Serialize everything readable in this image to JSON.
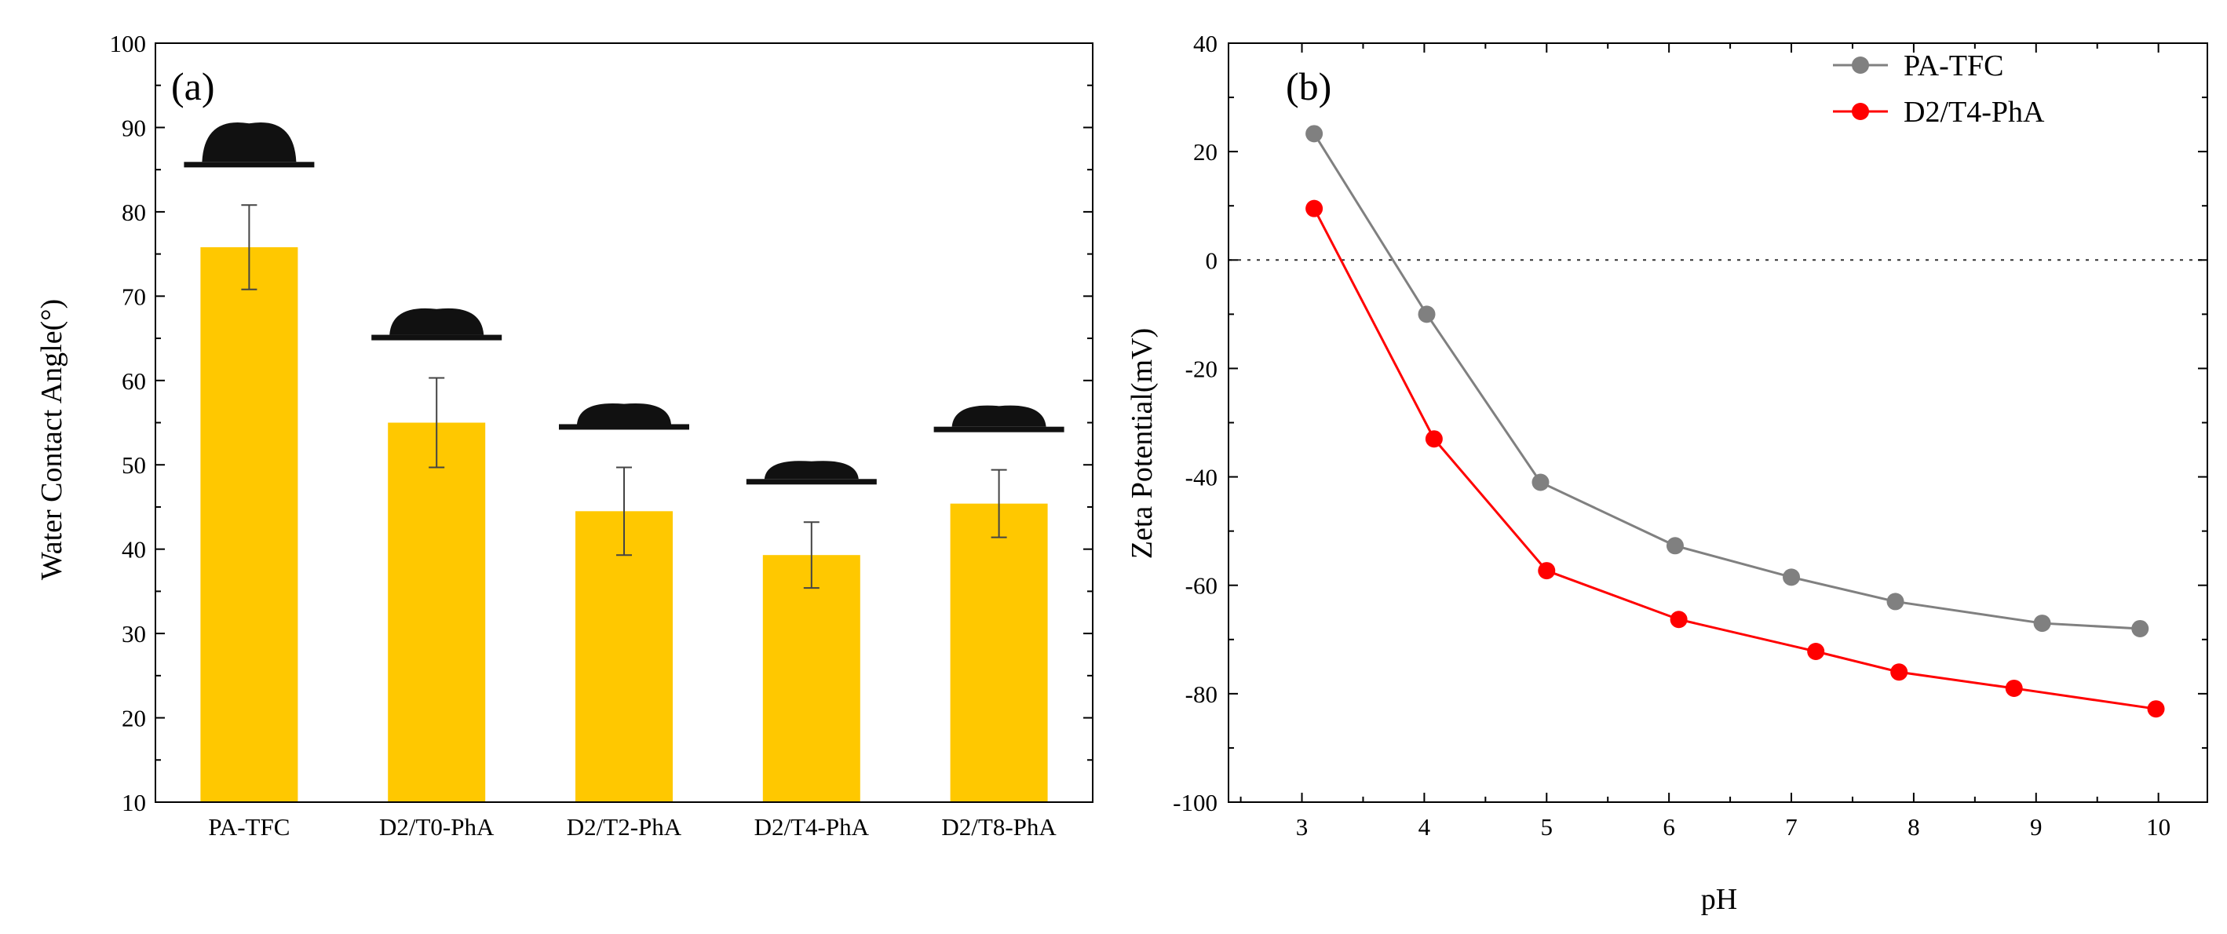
{
  "chart_data": [
    {
      "panel_label": "(a)",
      "type": "bar",
      "ylabel": "Water Contact Angle(°)",
      "xlabel": "",
      "ylim": [
        10,
        100
      ],
      "yticks": [
        "10",
        "20",
        "30",
        "40",
        "50",
        "60",
        "70",
        "80",
        "90",
        "100"
      ],
      "categories": [
        "PA-TFC",
        "D2/T0-PhA",
        "D2/T2-PhA",
        "D2/T4-PhA",
        "D2/T8-PhA"
      ],
      "values": [
        75.8,
        55.0,
        44.5,
        39.3,
        45.4
      ],
      "errors": [
        5.0,
        5.3,
        5.2,
        3.9,
        4.0
      ],
      "bar_color": "#FFC800",
      "droplet_color": "#111111",
      "droplet_icons": [
        "water-droplet-icon",
        "water-droplet-icon",
        "water-droplet-icon",
        "water-droplet-icon",
        "water-droplet-icon"
      ]
    },
    {
      "panel_label": "(b)",
      "type": "line",
      "xlabel": "pH",
      "ylabel": "Zeta Potential(mV)",
      "xlim": [
        2.4,
        10.4
      ],
      "ylim": [
        -100,
        40
      ],
      "xticks": [
        "3",
        "4",
        "5",
        "6",
        "7",
        "8",
        "9",
        "10"
      ],
      "yticks": [
        "-100",
        "-80",
        "-60",
        "-40",
        "-20",
        "0",
        "20",
        "40"
      ],
      "zero_line": "dotted",
      "legend_position": "top-right",
      "series": [
        {
          "name": "PA-TFC",
          "color": "#808080",
          "x": [
            3.1,
            4.02,
            4.95,
            6.05,
            7.0,
            7.85,
            9.05,
            9.85
          ],
          "y": [
            23.3,
            -10.0,
            -41.0,
            -52.7,
            -58.5,
            -63.0,
            -67.0,
            -68.0
          ]
        },
        {
          "name": "D2/T4-PhA",
          "color": "#FF0000",
          "x": [
            3.1,
            4.08,
            5.0,
            6.08,
            7.2,
            7.88,
            8.82,
            9.98
          ],
          "y": [
            9.5,
            -33.0,
            -57.3,
            -66.3,
            -72.2,
            -76.0,
            -79.0,
            -82.8
          ]
        }
      ]
    }
  ]
}
